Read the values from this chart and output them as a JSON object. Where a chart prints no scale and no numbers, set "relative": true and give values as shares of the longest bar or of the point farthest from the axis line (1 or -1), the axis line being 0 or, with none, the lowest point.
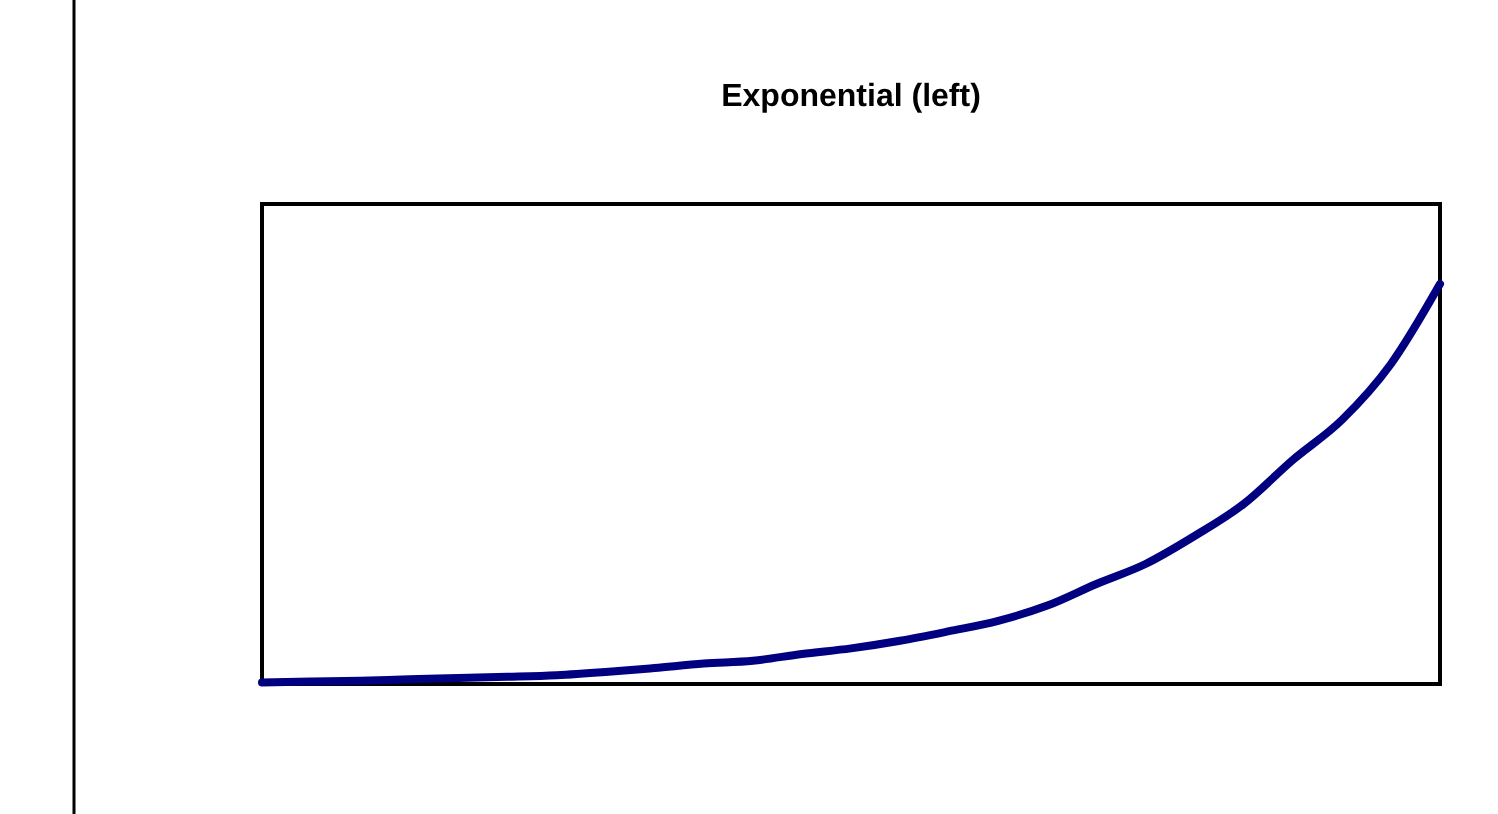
{
  "chart_data": {
    "type": "line",
    "title": "Exponential (left)",
    "relative": true,
    "categories": [
      null,
      null,
      null,
      null,
      null,
      null,
      null,
      null,
      null,
      null,
      null,
      null,
      null,
      null,
      null,
      null,
      null,
      null,
      null,
      null,
      null,
      null,
      null,
      null,
      null
    ],
    "series": [
      {
        "color": "#000080",
        "values": [
          0.004,
          0.006,
          0.008,
          0.012,
          0.015,
          0.018,
          0.022,
          0.03,
          0.04,
          0.051,
          0.058,
          0.075,
          0.089,
          0.108,
          0.132,
          0.158,
          0.196,
          0.25,
          0.3,
          0.37,
          0.45,
          0.56,
          0.66,
          0.8,
          1
        ]
      }
    ],
    "marker": "none",
    "line_style": "solid"
  }
}
